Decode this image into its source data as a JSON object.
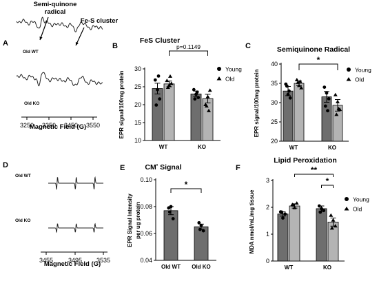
{
  "panels": [
    {
      "id": "A",
      "kind": "spectrum",
      "letter": "A",
      "title": "",
      "xlabel": "Magnetic Field (G)",
      "ticks": [
        "3250",
        "3350",
        "3450",
        "3550"
      ],
      "traces": [
        {
          "label": "Old WT",
          "profile": "semiquinone_fes"
        },
        {
          "label": "Old KO",
          "profile": "semiquinone_fes"
        }
      ],
      "annotations": [
        {
          "text": "Semi-quinone",
          "line2": "radical"
        },
        {
          "text": "Fe-S cluster",
          "line2": ""
        }
      ]
    },
    {
      "id": "B",
      "kind": "bar",
      "letter": "B",
      "title": "FeS Cluster",
      "ylabel": "EPR signal/100mg protein",
      "ylim": [
        10,
        30
      ],
      "yticks": [
        "10",
        "15",
        "20",
        "25",
        "30"
      ],
      "groups": [
        "WT",
        "KO"
      ],
      "series": [
        {
          "name": "Young",
          "color": "#6e6e6e",
          "marker": "circle",
          "values": [
            24.5,
            23.0
          ],
          "sem": [
            1.5,
            0.8
          ],
          "points": [
            [
              26.9,
              24.2,
              21.6,
              19.9,
              28.0
            ],
            [
              24.2,
              22.9,
              22.0,
              21.6,
              23.5
            ]
          ]
        },
        {
          "name": "Old",
          "color": "#b4b4b4",
          "marker": "triangle",
          "values": [
            25.8,
            21.7
          ],
          "sem": [
            0.8,
            1.2
          ],
          "points": [
            [
              26.7,
              25.4,
              25.9,
              24.8,
              27.9
            ],
            [
              20.0,
              22.2,
              24.0,
              19.6,
              18.3
            ]
          ]
        }
      ],
      "comparisons": [
        {
          "from": [
            0,
            1
          ],
          "to": [
            1,
            1
          ],
          "label": "p=0.1149"
        }
      ]
    },
    {
      "id": "C",
      "kind": "bar",
      "letter": "C",
      "title": "Semiquinone Radical",
      "ylabel": "EPR signal/100mg protein",
      "ylim": [
        20,
        40
      ],
      "yticks": [
        "20",
        "25",
        "30",
        "35",
        "40"
      ],
      "groups": [
        "WT",
        "KO"
      ],
      "series": [
        {
          "name": "Young",
          "color": "#6e6e6e",
          "marker": "circle",
          "values": [
            33.0,
            31.5
          ],
          "sem": [
            1.2,
            1.4
          ],
          "points": [
            [
              34.8,
              32.1,
              31.2,
              34.3,
              33.0
            ],
            [
              34.0,
              32.5,
              31.0,
              29.1,
              27.9
            ]
          ]
        },
        {
          "name": "Old",
          "color": "#b4b4b4",
          "marker": "triangle",
          "values": [
            35.0,
            29.3
          ],
          "sem": [
            0.6,
            1.5
          ],
          "points": [
            [
              35.9,
              34.4,
              33.8,
              35.2,
              35.5
            ],
            [
              32.0,
              30.2,
              28.2,
              26.9,
              28.4
            ]
          ]
        }
      ],
      "comparisons": [
        {
          "from": [
            0,
            1
          ],
          "to": [
            1,
            1
          ],
          "label": "*"
        }
      ]
    },
    {
      "id": "D",
      "kind": "spectrum",
      "letter": "D",
      "title": "",
      "xlabel": "Magnetic Field (G)",
      "ticks": [
        "3455",
        "3495",
        "3535"
      ],
      "traces": [
        {
          "label": "Old WT",
          "profile": "triplet",
          "amp": 1.0
        },
        {
          "label": "Old KO",
          "profile": "triplet",
          "amp": 0.72
        }
      ],
      "annotations": []
    },
    {
      "id": "E",
      "kind": "bar",
      "letter": "E",
      "title": "CM",
      "title_sup": "•",
      "title_tail": " Signal",
      "ylabel": "EPR Signal Intensity",
      "ylabel2": "per ug protein",
      "ylim": [
        0.04,
        0.1
      ],
      "yticks": [
        "0.04",
        "0.06",
        "0.08",
        "0.10"
      ],
      "groups": [
        "Old WT",
        "Old KO"
      ],
      "series": [
        {
          "name": "",
          "color": "#6e6e6e",
          "marker": "circle",
          "values": [
            0.077,
            0.065
          ],
          "sem": [
            0.003,
            0.002
          ],
          "points": [
            [
              0.079,
              0.08,
              0.071,
              0.076
            ],
            [
              0.068,
              0.066,
              0.062,
              0.063
            ]
          ]
        }
      ],
      "comparisons": [
        {
          "from": [
            0,
            0
          ],
          "to": [
            1,
            0
          ],
          "label": "*"
        }
      ]
    },
    {
      "id": "F",
      "kind": "bar",
      "letter": "F",
      "title": "Lipid Peroxidation",
      "ylabel": "MDA nmol/mL/mg tissue",
      "ylim": [
        0,
        3
      ],
      "yticks": [
        "0",
        "1",
        "2",
        "3"
      ],
      "groups": [
        "WT",
        "KO"
      ],
      "series": [
        {
          "name": "Young",
          "color": "#6e6e6e",
          "marker": "circle",
          "values": [
            1.75,
            1.95
          ],
          "sem": [
            0.08,
            0.1
          ],
          "points": [
            [
              1.83,
              1.6,
              1.75,
              1.82
            ],
            [
              2.05,
              1.95,
              1.88,
              1.82
            ]
          ]
        },
        {
          "name": "Old",
          "color": "#b4b4b4",
          "marker": "triangle",
          "values": [
            2.05,
            1.45
          ],
          "sem": [
            0.08,
            0.15
          ],
          "points": [
            [
              2.1,
              1.98,
              2.15,
              2.08
            ],
            [
              1.7,
              1.52,
              1.3,
              1.22
            ]
          ]
        }
      ],
      "comparisons": [
        {
          "from": [
            0,
            1
          ],
          "to": [
            1,
            1
          ],
          "label": "**",
          "level": 2
        },
        {
          "from": [
            1,
            0
          ],
          "to": [
            1,
            1
          ],
          "label": "*",
          "level": 1
        }
      ]
    }
  ]
}
